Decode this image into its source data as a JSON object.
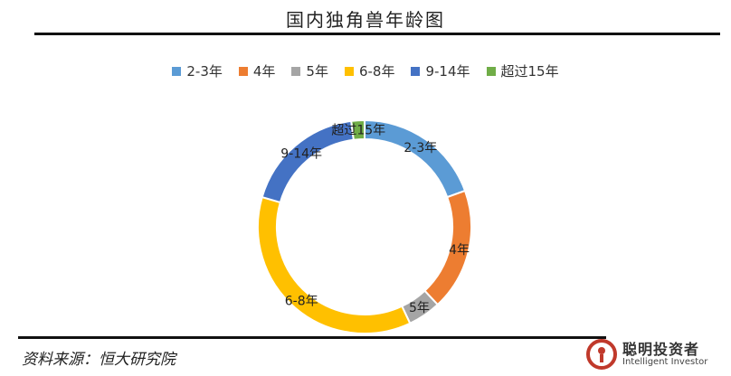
{
  "title": "国内独角兽年龄图",
  "source": "资料来源：恒大研究院",
  "watermark": {
    "cn": "聪明投资者",
    "en": "Intelligent Investor"
  },
  "colors": {
    "2-3年": "#5b9bd5",
    "4年": "#ed7d31",
    "5年": "#a5a5a5",
    "6-8年": "#ffc000",
    "9-14年": "#4472c4",
    "超过15年": "#70ad47"
  },
  "chart_data": {
    "type": "pie",
    "style": "donut",
    "title": "国内独角兽年龄图",
    "legend_position": "top",
    "categories": [
      "2-3年",
      "4年",
      "5年",
      "6-8年",
      "9-14年",
      "超过15年"
    ],
    "values": [
      19.5,
      18.5,
      5.0,
      36.5,
      18.5,
      2.0
    ],
    "data_labels": [
      "2-3年",
      "4年",
      "5年",
      "6-8年",
      "9-14年",
      "超过15年"
    ]
  }
}
